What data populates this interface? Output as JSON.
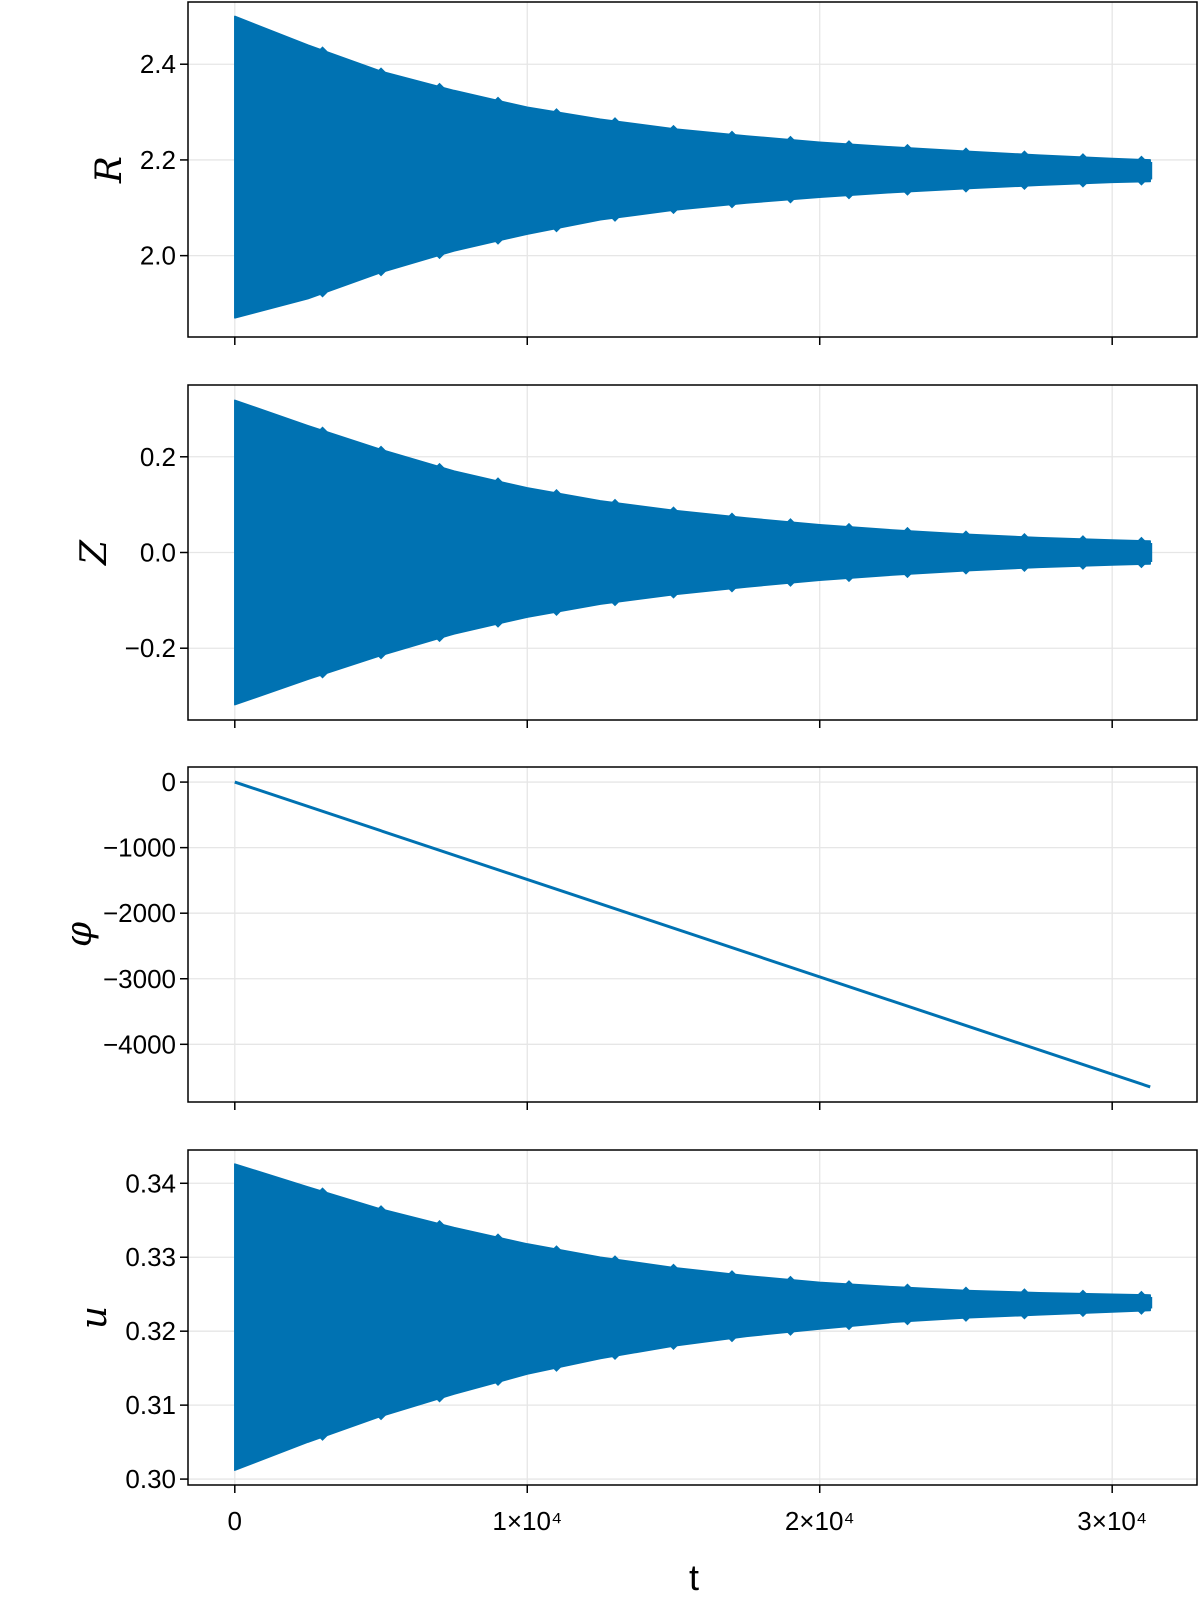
{
  "chart_data": {
    "type": "line",
    "layout": "stacked-subplots-shared-x",
    "series_color": "#0072b2",
    "grid": true,
    "xlabel": "t",
    "x_tick_values": [
      0,
      10000,
      20000,
      30000
    ],
    "x_tick_labels": [
      "0",
      "1×10⁴",
      "2×10⁴",
      "3×10⁴"
    ],
    "xlim": [
      -1600,
      32900
    ],
    "x_data_range": [
      0,
      31300
    ],
    "panels": [
      {
        "ylabel": "R",
        "ylim": [
          1.83,
          2.53
        ],
        "yticks": [
          2.0,
          2.2,
          2.4
        ],
        "ytick_labels": [
          "2.0",
          "2.2",
          "2.4"
        ],
        "style": "oscillation-envelope",
        "center": [
          [
            0,
            2.18
          ],
          [
            31300,
            2.178
          ]
        ],
        "upper_envelope": [
          [
            0,
            2.5
          ],
          [
            2500,
            2.44
          ],
          [
            5000,
            2.385
          ],
          [
            7500,
            2.345
          ],
          [
            10000,
            2.31
          ],
          [
            12500,
            2.285
          ],
          [
            15000,
            2.265
          ],
          [
            17500,
            2.25
          ],
          [
            20000,
            2.237
          ],
          [
            22500,
            2.227
          ],
          [
            25000,
            2.218
          ],
          [
            27500,
            2.21
          ],
          [
            30000,
            2.203
          ],
          [
            31300,
            2.2
          ]
        ],
        "lower_envelope": [
          [
            0,
            1.87
          ],
          [
            2500,
            1.91
          ],
          [
            5000,
            1.965
          ],
          [
            7500,
            2.01
          ],
          [
            10000,
            2.045
          ],
          [
            12500,
            2.075
          ],
          [
            15000,
            2.095
          ],
          [
            17500,
            2.11
          ],
          [
            20000,
            2.122
          ],
          [
            22500,
            2.132
          ],
          [
            25000,
            2.14
          ],
          [
            27500,
            2.147
          ],
          [
            30000,
            2.153
          ],
          [
            31300,
            2.155
          ]
        ]
      },
      {
        "ylabel": "Z",
        "ylim": [
          -0.35,
          0.35
        ],
        "yticks": [
          -0.2,
          0.0,
          0.2
        ],
        "ytick_labels": [
          "−0.2",
          "0.0",
          "0.2"
        ],
        "style": "oscillation-envelope",
        "center": [
          [
            0,
            0.0
          ],
          [
            31300,
            0.0
          ]
        ],
        "upper_envelope": [
          [
            0,
            0.318
          ],
          [
            2500,
            0.265
          ],
          [
            5000,
            0.215
          ],
          [
            7500,
            0.17
          ],
          [
            10000,
            0.135
          ],
          [
            12500,
            0.108
          ],
          [
            15000,
            0.088
          ],
          [
            17500,
            0.072
          ],
          [
            20000,
            0.058
          ],
          [
            22500,
            0.047
          ],
          [
            25000,
            0.038
          ],
          [
            27500,
            0.031
          ],
          [
            30000,
            0.026
          ],
          [
            31300,
            0.024
          ]
        ],
        "lower_envelope": [
          [
            0,
            -0.318
          ],
          [
            2500,
            -0.265
          ],
          [
            5000,
            -0.215
          ],
          [
            7500,
            -0.17
          ],
          [
            10000,
            -0.135
          ],
          [
            12500,
            -0.108
          ],
          [
            15000,
            -0.088
          ],
          [
            17500,
            -0.072
          ],
          [
            20000,
            -0.058
          ],
          [
            22500,
            -0.047
          ],
          [
            25000,
            -0.038
          ],
          [
            27500,
            -0.031
          ],
          [
            30000,
            -0.026
          ],
          [
            31300,
            -0.024
          ]
        ]
      },
      {
        "ylabel": "φ",
        "ylim": [
          -4880,
          230
        ],
        "yticks": [
          -4000,
          -3000,
          -2000,
          -1000,
          0
        ],
        "ytick_labels": [
          "−4000",
          "−3000",
          "−2000",
          "−1000",
          "0"
        ],
        "style": "line",
        "line": [
          [
            0,
            0
          ],
          [
            31300,
            -4650
          ]
        ]
      },
      {
        "ylabel": "u",
        "ylim": [
          0.2992,
          0.3445
        ],
        "yticks": [
          0.3,
          0.31,
          0.32,
          0.33,
          0.34
        ],
        "ytick_labels": [
          "0.30",
          "0.31",
          "0.32",
          "0.33",
          "0.34"
        ],
        "style": "oscillation-envelope",
        "center": [
          [
            0,
            0.3215
          ],
          [
            31300,
            0.3238
          ]
        ],
        "upper_envelope": [
          [
            0,
            0.3426
          ],
          [
            2500,
            0.3395
          ],
          [
            5000,
            0.3365
          ],
          [
            7500,
            0.334
          ],
          [
            10000,
            0.3318
          ],
          [
            12500,
            0.33
          ],
          [
            15000,
            0.3286
          ],
          [
            17500,
            0.3275
          ],
          [
            20000,
            0.3266
          ],
          [
            22500,
            0.326
          ],
          [
            25000,
            0.3255
          ],
          [
            27500,
            0.3252
          ],
          [
            30000,
            0.325
          ],
          [
            31300,
            0.3249
          ]
        ],
        "lower_envelope": [
          [
            0,
            0.3012
          ],
          [
            2500,
            0.305
          ],
          [
            5000,
            0.3085
          ],
          [
            7500,
            0.3115
          ],
          [
            10000,
            0.3142
          ],
          [
            12500,
            0.3163
          ],
          [
            15000,
            0.318
          ],
          [
            17500,
            0.3193
          ],
          [
            20000,
            0.3203
          ],
          [
            22500,
            0.3212
          ],
          [
            25000,
            0.3218
          ],
          [
            27500,
            0.3222
          ],
          [
            30000,
            0.3226
          ],
          [
            31300,
            0.3228
          ]
        ]
      }
    ]
  }
}
